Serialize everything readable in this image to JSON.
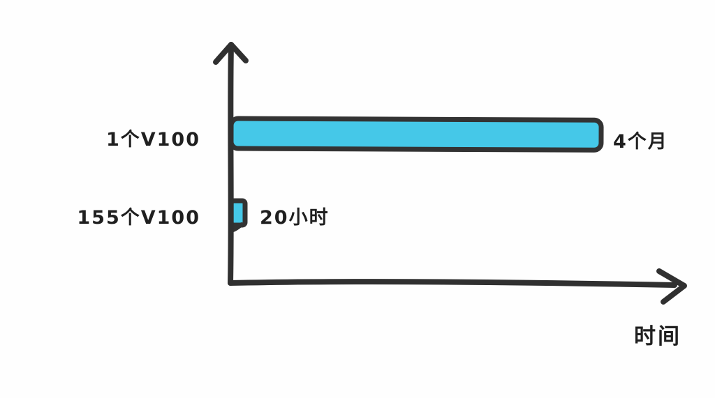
{
  "chart_data": {
    "type": "bar",
    "orientation": "horizontal",
    "title": "",
    "xlabel": "时间",
    "ylabel": "",
    "grid": false,
    "legend": false,
    "categories": [
      "1个V100",
      "155个V100"
    ],
    "bars": [
      {
        "category": "1个V100",
        "value_label": "4个月",
        "relative_length": 1.0
      },
      {
        "category": "155个V100",
        "value_label": "20小时",
        "relative_length": 0.038
      }
    ],
    "colors": {
      "bar_fill": "#45C8E8",
      "outline": "#333333",
      "text": "#1f1f1f",
      "background": "#fefefe"
    }
  }
}
